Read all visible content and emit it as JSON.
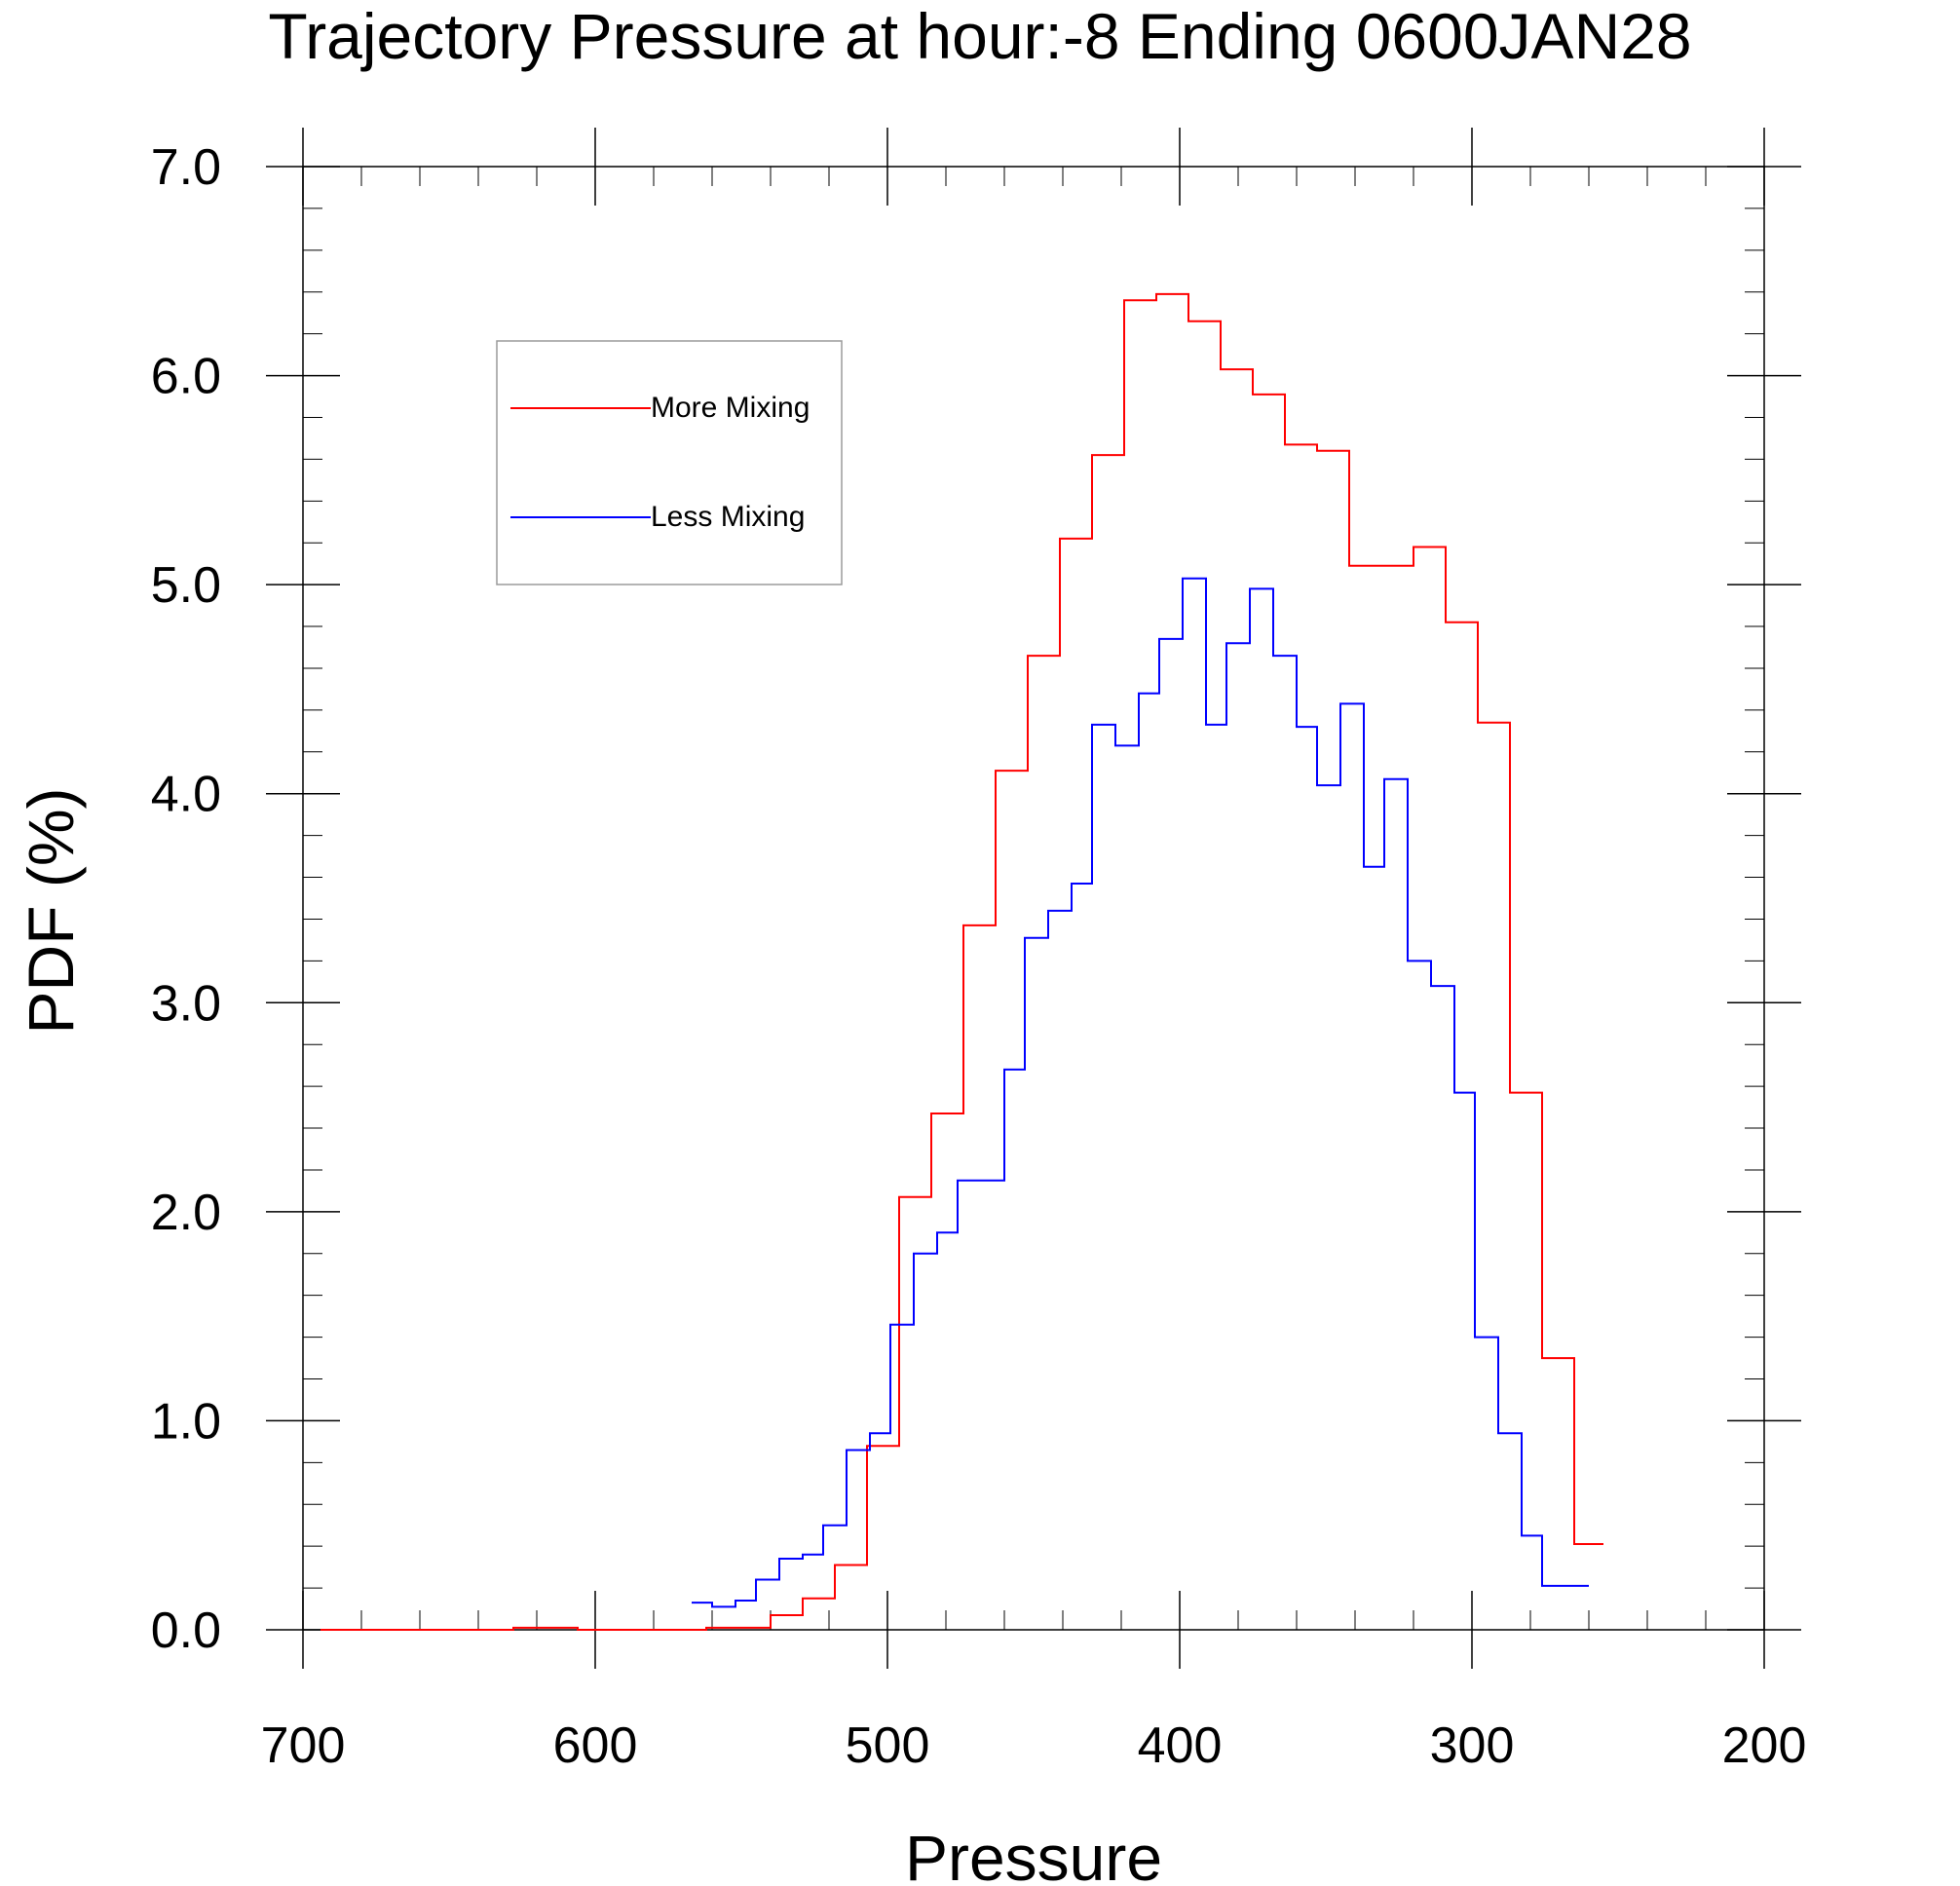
{
  "chart_data": {
    "type": "line",
    "title": "Trajectory Pressure at hour:-8 Ending 0600JAN28",
    "xlabel": "Pressure",
    "ylabel": "PDF (%)",
    "xlim": [
      700,
      200
    ],
    "ylim": [
      0,
      7
    ],
    "x_reversed": true,
    "x_ticks": [
      700,
      600,
      500,
      400,
      300,
      200
    ],
    "x_tick_labels": [
      "700",
      "600",
      "500",
      "400",
      "300",
      "200"
    ],
    "y_ticks": [
      0,
      1,
      2,
      3,
      4,
      5,
      6,
      7
    ],
    "y_tick_labels": [
      "0.0",
      "1.0",
      "2.0",
      "3.0",
      "4.0",
      "5.0",
      "6.0",
      "7.0"
    ],
    "step_style": "step",
    "grid": false,
    "legend_position": "top-left",
    "series": [
      {
        "name": "More Mixing",
        "color": "#ff0000",
        "x": [
          694,
          683,
          672,
          661,
          650,
          639,
          628,
          617,
          606,
          595,
          584,
          573,
          562,
          551,
          540,
          529,
          518,
          507,
          496,
          485,
          474,
          463,
          452,
          441,
          430,
          419,
          408,
          397,
          386,
          375,
          364,
          353,
          342,
          331,
          320,
          309,
          298,
          287,
          276,
          265,
          255
        ],
        "y": [
          0.0,
          0.0,
          0.0,
          0.0,
          0.0,
          0.0,
          0.01,
          0.01,
          0.0,
          0.0,
          0.0,
          0.0,
          0.01,
          0.01,
          0.07,
          0.15,
          0.31,
          0.88,
          2.07,
          2.47,
          3.37,
          4.11,
          4.66,
          5.22,
          5.62,
          6.36,
          6.39,
          6.26,
          6.03,
          5.91,
          5.67,
          5.64,
          5.09,
          5.09,
          5.18,
          4.82,
          4.34,
          2.57,
          1.3,
          0.41,
          0.41
        ]
      },
      {
        "name": "Less Mixing",
        "color": "#0000ff",
        "x": [
          567,
          560,
          552,
          545,
          537,
          529,
          522,
          514,
          506,
          499,
          491,
          483,
          476,
          468,
          460,
          453,
          445,
          437,
          430,
          422,
          414,
          407,
          399,
          391,
          384,
          376,
          368,
          360,
          353,
          345,
          337,
          330,
          322,
          314,
          306,
          299,
          291,
          283,
          276,
          268,
          260
        ],
        "y": [
          0.13,
          0.11,
          0.14,
          0.24,
          0.34,
          0.36,
          0.5,
          0.86,
          0.94,
          1.46,
          1.8,
          1.9,
          2.15,
          2.15,
          2.68,
          3.31,
          3.44,
          3.57,
          4.33,
          4.23,
          4.48,
          4.74,
          5.03,
          4.33,
          4.72,
          4.98,
          4.66,
          4.32,
          4.04,
          4.43,
          3.65,
          4.07,
          3.2,
          3.08,
          2.57,
          1.4,
          0.94,
          0.45,
          0.21,
          0.21,
          0.21
        ]
      }
    ]
  }
}
